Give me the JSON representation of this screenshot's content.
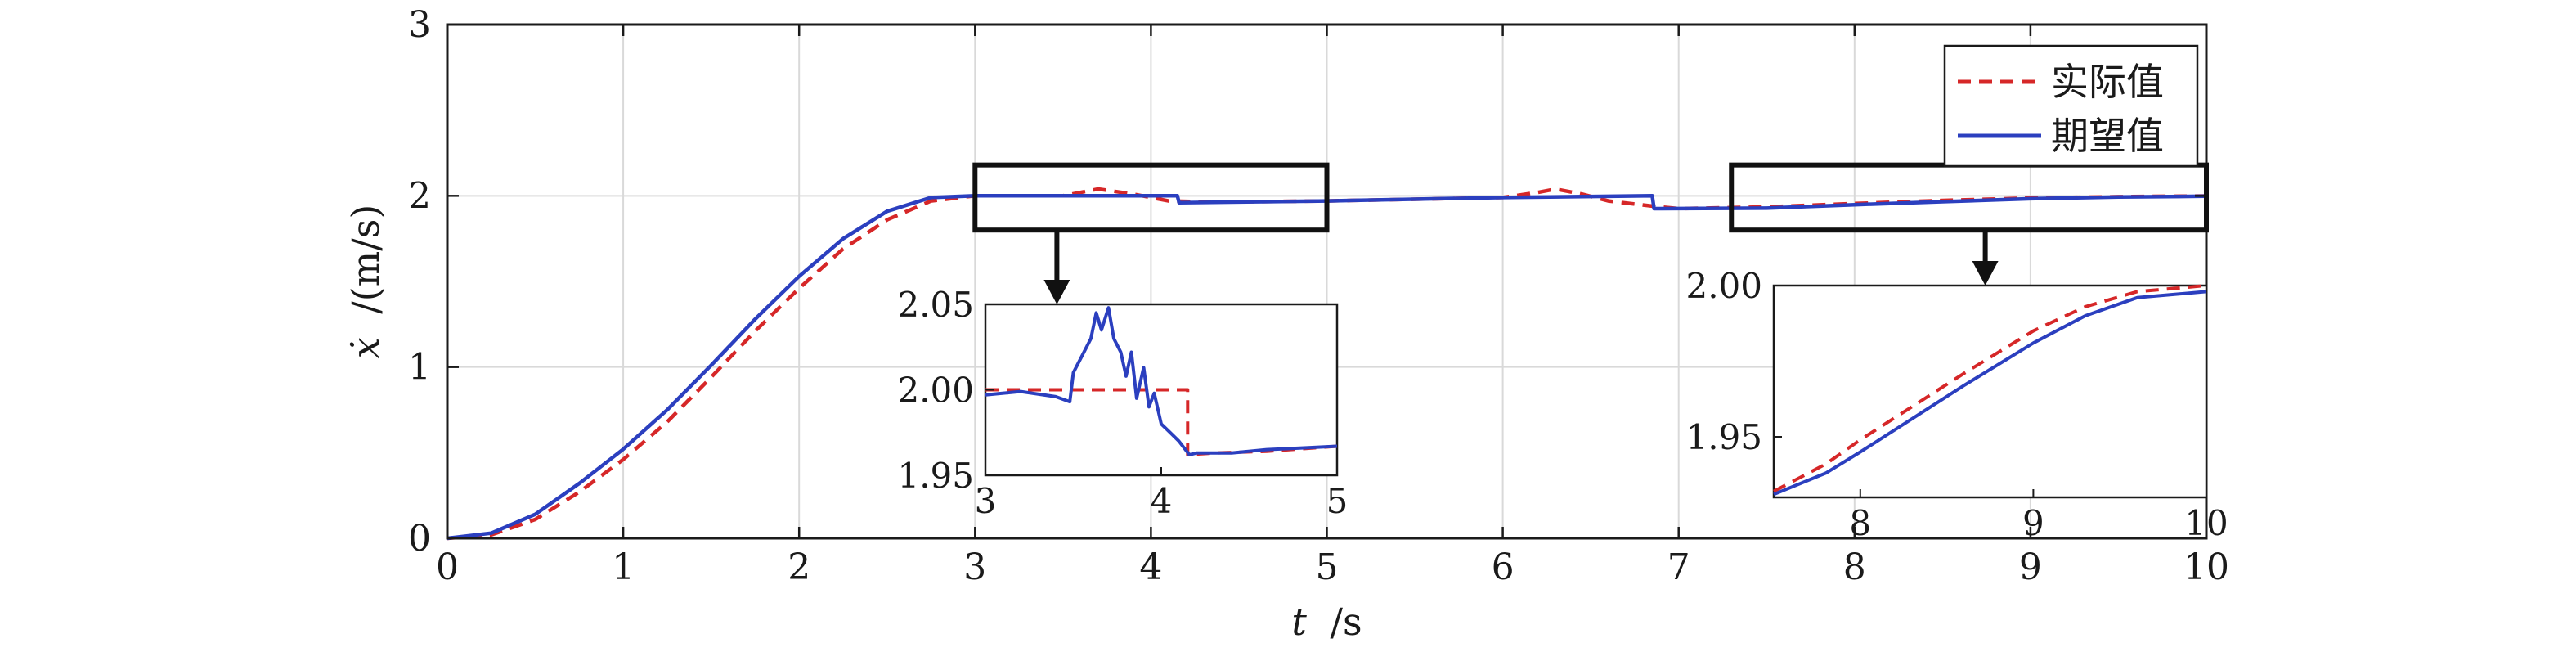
{
  "chart_data": {
    "type": "line",
    "xlabel_var": "t",
    "xlabel_unit": "/s",
    "ylabel_var": "ẋ",
    "ylabel_unit": "/(m/s)",
    "xlim": [
      0,
      10
    ],
    "ylim": [
      0,
      3
    ],
    "xticks": [
      "0",
      "1",
      "2",
      "3",
      "4",
      "5",
      "6",
      "7",
      "8",
      "9",
      "10"
    ],
    "yticks": [
      "0",
      "1",
      "2",
      "3"
    ],
    "grid": true,
    "legend_position": "top-right",
    "legend": [
      "实际值",
      "期望值"
    ],
    "colors": {
      "actual": "#d62728",
      "desired": "#2b3fbf",
      "axis": "#1a1a1a",
      "grid": "#d9d9d9"
    },
    "series": [
      {
        "name": "实际值",
        "style": "dashed",
        "x": [
          0,
          0.25,
          0.5,
          0.75,
          1.0,
          1.25,
          1.5,
          1.75,
          2.0,
          2.25,
          2.5,
          2.75,
          3.0,
          3.25,
          3.5,
          3.7,
          3.9,
          4.1,
          4.3,
          4.6,
          5.0,
          5.5,
          6.0,
          6.2,
          6.3,
          6.45,
          6.6,
          6.85,
          7.0,
          7.5,
          8.0,
          8.5,
          9.0,
          9.5,
          10.0
        ],
        "y": [
          0,
          0.02,
          0.11,
          0.27,
          0.46,
          0.68,
          0.94,
          1.21,
          1.46,
          1.69,
          1.86,
          1.97,
          2.0,
          2.0,
          2.0,
          2.04,
          2.01,
          1.97,
          1.965,
          1.966,
          1.97,
          1.98,
          1.99,
          2.02,
          2.04,
          2.01,
          1.97,
          1.94,
          1.925,
          1.935,
          1.955,
          1.973,
          1.987,
          1.995,
          1.999
        ]
      },
      {
        "name": "期望值",
        "style": "solid",
        "x": [
          0,
          0.25,
          0.5,
          0.75,
          1.0,
          1.25,
          1.5,
          1.75,
          2.0,
          2.25,
          2.5,
          2.75,
          3.0,
          3.5,
          4.0,
          4.15,
          4.16,
          5.0,
          6.0,
          6.85,
          6.86,
          7.5,
          8.0,
          8.5,
          9.0,
          9.5,
          10.0
        ],
        "y": [
          0,
          0.03,
          0.14,
          0.32,
          0.52,
          0.75,
          1.01,
          1.28,
          1.53,
          1.75,
          1.91,
          1.99,
          2.0,
          2.0,
          2.0,
          2.0,
          1.96,
          1.97,
          1.99,
          2.0,
          1.925,
          1.928,
          1.948,
          1.966,
          1.983,
          1.993,
          1.998
        ]
      }
    ],
    "insets": [
      {
        "xlim": [
          3,
          5
        ],
        "ylim": [
          1.95,
          2.05
        ],
        "xticks": [
          "3",
          "4",
          "5"
        ],
        "yticks": [
          "1.95",
          "2.00",
          "2.05"
        ],
        "series": [
          {
            "name": "实际值",
            "style": "dashed",
            "x": [
              3.0,
              4.15,
              4.15,
              4.3,
              4.6,
              5.0
            ],
            "y": [
              2.0,
              2.0,
              1.962,
              1.963,
              1.964,
              1.967
            ]
          },
          {
            "name": "期望值",
            "style": "solid",
            "x": [
              3.0,
              3.2,
              3.4,
              3.48,
              3.5,
              3.55,
              3.6,
              3.63,
              3.66,
              3.7,
              3.73,
              3.77,
              3.8,
              3.83,
              3.86,
              3.9,
              3.93,
              3.96,
              4.0,
              4.05,
              4.1,
              4.16,
              4.2,
              4.4,
              4.6,
              4.8,
              5.0
            ],
            "y": [
              1.997,
              1.999,
              1.996,
              1.993,
              2.01,
              2.02,
              2.03,
              2.045,
              2.035,
              2.048,
              2.03,
              2.022,
              2.008,
              2.022,
              1.995,
              2.013,
              1.99,
              1.998,
              1.98,
              1.975,
              1.97,
              1.962,
              1.963,
              1.963,
              1.965,
              1.966,
              1.967
            ]
          }
        ]
      },
      {
        "xlim": [
          7.5,
          10
        ],
        "ylim": [
          1.93,
          2.0
        ],
        "xticks": [
          "8",
          "9",
          "10"
        ],
        "yticks": [
          "1.95",
          "2.00"
        ],
        "series": [
          {
            "name": "实际值",
            "style": "dashed",
            "x": [
              7.5,
              7.8,
              8.0,
              8.3,
              8.6,
              9.0,
              9.3,
              9.6,
              10.0
            ],
            "y": [
              1.932,
              1.941,
              1.949,
              1.96,
              1.971,
              1.985,
              1.993,
              1.998,
              2.0
            ]
          },
          {
            "name": "期望值",
            "style": "solid",
            "x": [
              7.5,
              7.8,
              8.0,
              8.3,
              8.6,
              9.0,
              9.3,
              9.6,
              10.0
            ],
            "y": [
              1.931,
              1.938,
              1.945,
              1.956,
              1.967,
              1.981,
              1.99,
              1.996,
              1.998
            ]
          }
        ]
      }
    ],
    "zoom_regions": [
      {
        "x": [
          3,
          5
        ],
        "y": [
          1.8,
          2.18
        ]
      },
      {
        "x": [
          7.3,
          10
        ],
        "y": [
          1.8,
          2.18
        ]
      }
    ]
  }
}
